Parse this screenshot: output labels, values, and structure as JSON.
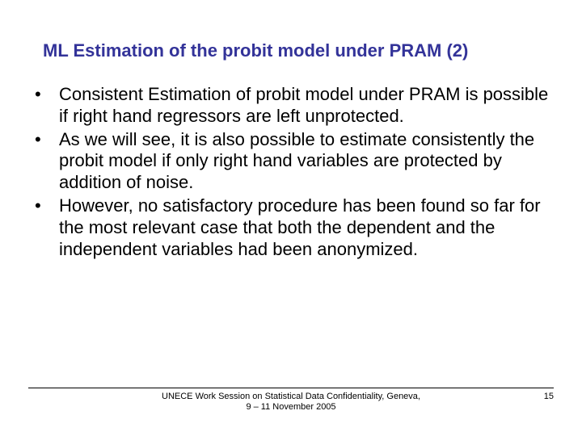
{
  "slide": {
    "title": "ML Estimation of the probit model under PRAM (2)",
    "bullets": [
      "Consistent Estimation of probit model under PRAM is possible if right hand regressors are left unprotected.",
      "As we will see, it is also possible to estimate consistently the probit model if only right hand variables are protected by addition of noise.",
      "However, no satisfactory procedure has been found so far for the most relevant case that both the dependent and the independent variables had been anonymized."
    ],
    "footer": {
      "line1": "UNECE Work Session on Statistical Data Confidentiality, Geneva,",
      "line2": "9 – 11 November 2005"
    },
    "page_number": "15"
  },
  "style": {
    "title_color": "#333399",
    "title_fontsize": 22,
    "body_fontsize": 22,
    "footer_fontsize": 11,
    "background_color": "#ffffff",
    "text_color": "#000000"
  }
}
